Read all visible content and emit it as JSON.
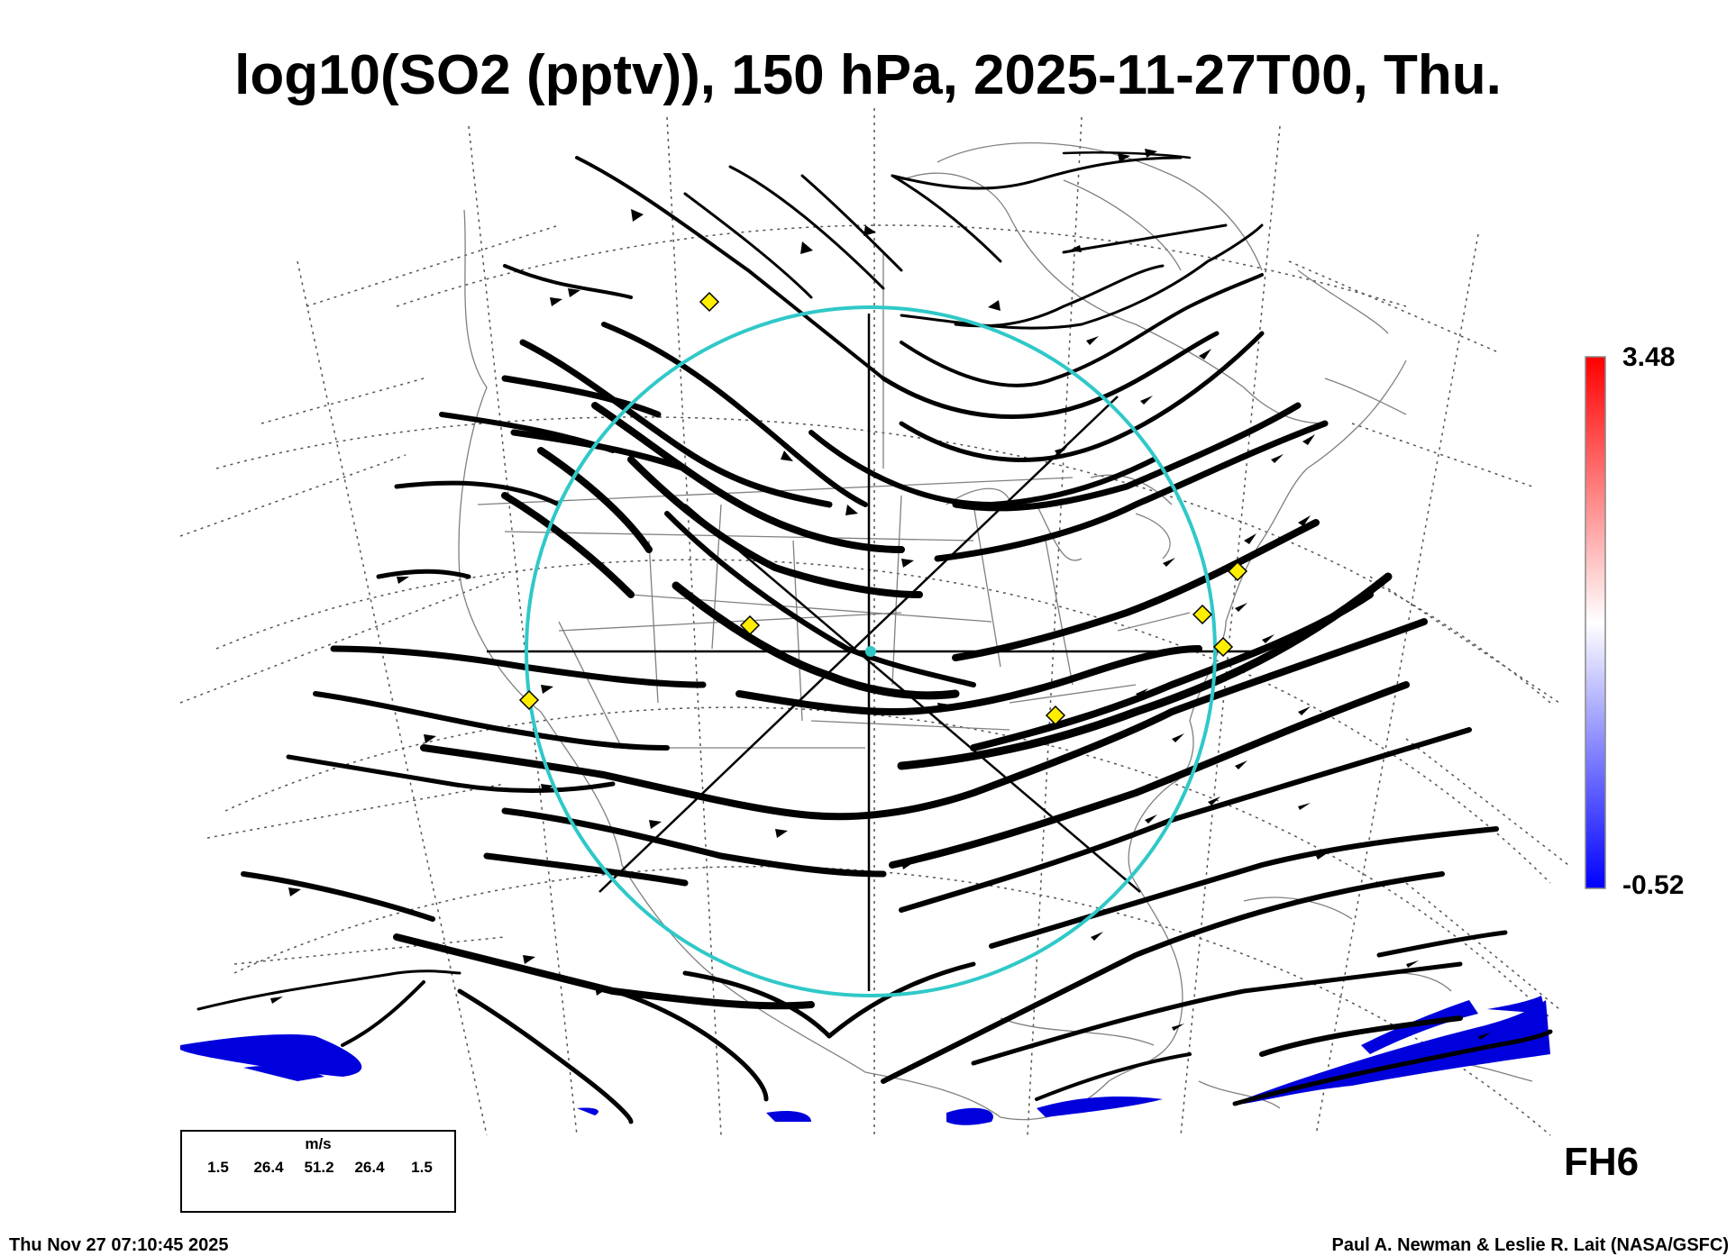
{
  "title": "log10(SO2 (pptv)), 150 hPa, 2025-11-27T00, Thu.",
  "colorbar": {
    "max": "3.48",
    "min": "-0.52",
    "low_color": "#0000ff",
    "mid_color": "#ffffff",
    "high_color": "#ff0000"
  },
  "forecast_hour": "FH6",
  "timestamp": "Thu Nov 27 07:10:45 2025",
  "credit": "Paul A. Newman & Leslie R. Lait (NASA/GSFC)",
  "wind_legend": {
    "unit": "m/s",
    "values": [
      "1.5",
      "26.4",
      "51.2",
      "26.4",
      "1.5"
    ]
  },
  "colors": {
    "ring": "#30c8c8",
    "marker": "#ffee00",
    "so2_low": "#0000dd",
    "coast": "#808080",
    "grid": "#555555"
  }
}
